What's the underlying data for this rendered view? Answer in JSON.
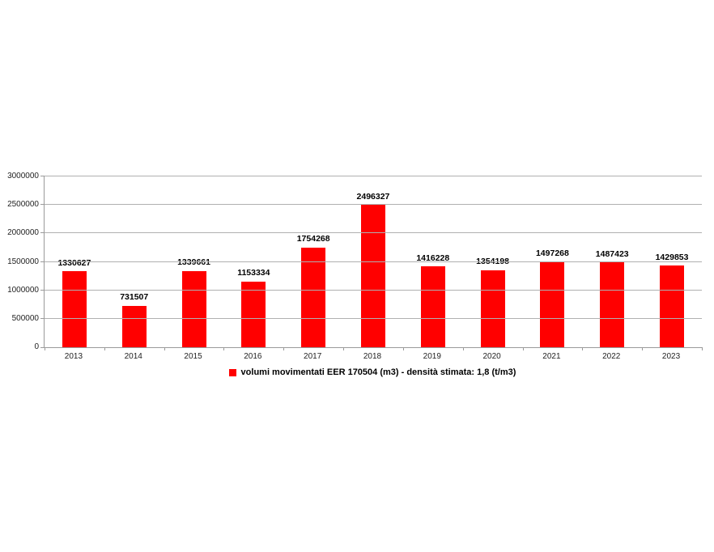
{
  "chart_data": {
    "type": "bar",
    "title": "",
    "xlabel": "",
    "ylabel": "",
    "categories": [
      "2013",
      "2014",
      "2015",
      "2016",
      "2017",
      "2018",
      "2019",
      "2020",
      "2021",
      "2022",
      "2023"
    ],
    "series": [
      {
        "name": "volumi movimentati EER 170504 (m3) - densità stimata: 1,8 (t/m3)",
        "values": [
          1330627,
          731507,
          1339661,
          1153334,
          1754268,
          2496327,
          1416228,
          1354198,
          1497268,
          1487423,
          1429853
        ]
      }
    ],
    "data_labels": [
      "1330627",
      "731507",
      "1339661",
      "1153334",
      "1754268",
      "2496327",
      "1416228",
      "1354198",
      "1497268",
      "1487423",
      "1429853"
    ],
    "ylim": [
      0,
      3000000
    ],
    "ytick_step": 500000,
    "ytick_labels": [
      "0",
      "500000",
      "1000000",
      "1500000",
      "2000000",
      "2500000",
      "3000000"
    ],
    "grid": true,
    "legend_position": "bottom",
    "bar_color": "#ff0000",
    "gridline_color": "#b0b0b0",
    "axis_color": "#9a9a9a"
  },
  "legend": {
    "label": "volumi movimentati EER 170504 (m3) - densità stimata: 1,8 (t/m3)",
    "swatch_color": "#ff0000"
  }
}
